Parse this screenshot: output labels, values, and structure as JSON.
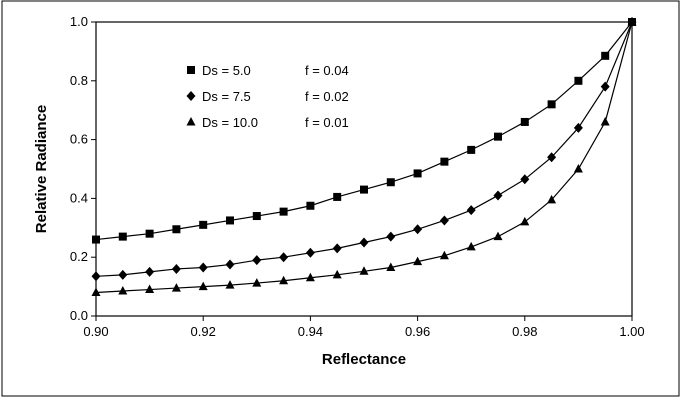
{
  "chart_data": {
    "type": "line",
    "title": "",
    "xlabel": "Reflectance",
    "ylabel": "Relative Radiance",
    "xlim": [
      0.9,
      1.0
    ],
    "ylim": [
      0.0,
      1.0
    ],
    "xticks": [
      "0.90",
      "0.92",
      "0.94",
      "0.96",
      "0.98",
      "1.00"
    ],
    "yticks": [
      "0.0",
      "0.2",
      "0.4",
      "0.6",
      "0.8",
      "1.0"
    ],
    "grid": false,
    "legend_position": "top-left",
    "x": [
      0.9,
      0.905,
      0.91,
      0.915,
      0.92,
      0.925,
      0.93,
      0.935,
      0.94,
      0.945,
      0.95,
      0.955,
      0.96,
      0.965,
      0.97,
      0.975,
      0.98,
      0.985,
      0.99,
      0.995,
      1.0
    ],
    "series": [
      {
        "name": "Ds = 5.0",
        "param": "f = 0.04",
        "marker": "square",
        "values": [
          0.26,
          0.27,
          0.28,
          0.295,
          0.31,
          0.325,
          0.34,
          0.355,
          0.375,
          0.405,
          0.43,
          0.455,
          0.485,
          0.525,
          0.565,
          0.61,
          0.66,
          0.72,
          0.8,
          0.885,
          1.0
        ]
      },
      {
        "name": "Ds = 7.5",
        "param": "f = 0.02",
        "marker": "diamond",
        "values": [
          0.135,
          0.14,
          0.15,
          0.16,
          0.165,
          0.175,
          0.19,
          0.2,
          0.215,
          0.23,
          0.25,
          0.27,
          0.295,
          0.325,
          0.36,
          0.41,
          0.465,
          0.54,
          0.64,
          0.78,
          1.0
        ]
      },
      {
        "name": "Ds = 10.0",
        "param": "f = 0.01",
        "marker": "triangle",
        "values": [
          0.08,
          0.085,
          0.09,
          0.095,
          0.1,
          0.105,
          0.112,
          0.12,
          0.13,
          0.14,
          0.152,
          0.165,
          0.185,
          0.205,
          0.235,
          0.27,
          0.32,
          0.395,
          0.5,
          0.66,
          1.0
        ]
      }
    ]
  }
}
